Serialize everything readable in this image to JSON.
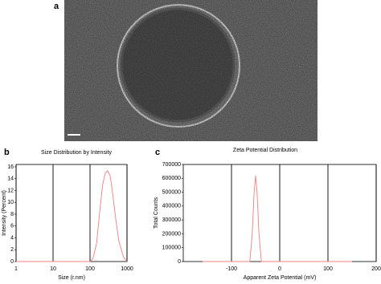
{
  "image": {
    "panel_label": "a"
  },
  "chart_data": [
    {
      "type": "line",
      "panel_label": "b",
      "title": "Size Distribution by Intensity",
      "x_label": "Size (r.nm)",
      "y_label": "Intensity (Percent)",
      "log_x": true,
      "xlim": [
        1,
        1000
      ],
      "xticks": [
        1,
        10,
        100,
        1000
      ],
      "ylim": [
        0,
        16.4
      ],
      "yticks": [
        0,
        2,
        4,
        6,
        8,
        10,
        12,
        14,
        16
      ],
      "grid": true,
      "series": [
        {
          "color": "#f08080",
          "x": [
            1,
            100,
            120,
            150,
            180,
            220,
            260,
            300,
            350,
            400,
            500,
            600,
            800,
            1000
          ],
          "values": [
            0,
            0,
            0.5,
            3,
            8,
            13,
            15,
            15.3,
            14.5,
            12,
            7,
            3.5,
            0.8,
            0
          ]
        }
      ]
    },
    {
      "type": "line",
      "panel_label": "c",
      "title": "Zeta Potential Distribution",
      "x_label": "Apparent Zeta Potential (mV)",
      "y_label": "Total Counts",
      "log_x": false,
      "xlim": [
        -200,
        200
      ],
      "xticks": [
        -100,
        0,
        100,
        200
      ],
      "ylim": [
        0,
        700000
      ],
      "yticks": [
        0,
        100000,
        200000,
        300000,
        400000,
        500000,
        600000,
        700000
      ],
      "grid": true,
      "series": [
        {
          "color": "#f08080",
          "x": [
            -160,
            -62,
            -57,
            -53,
            -50,
            -47,
            -43,
            -38,
            150
          ],
          "values": [
            0,
            0,
            200000,
            500000,
            620000,
            500000,
            200000,
            0,
            0
          ]
        }
      ]
    }
  ]
}
